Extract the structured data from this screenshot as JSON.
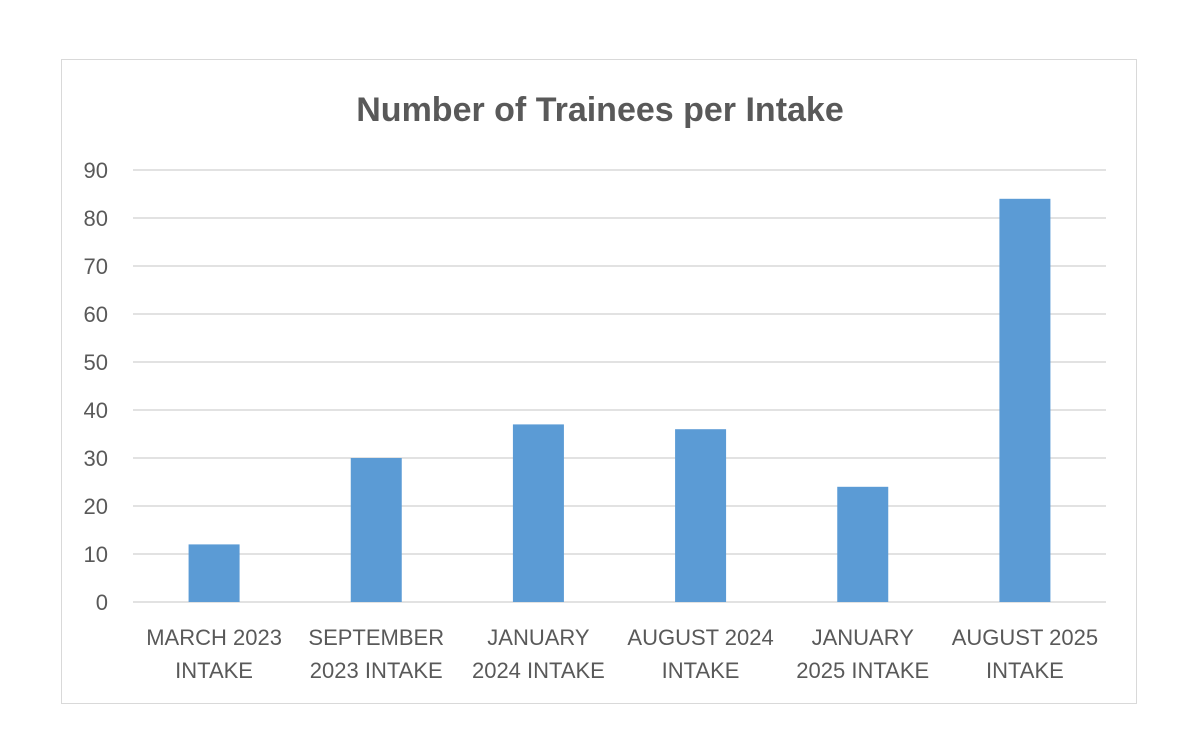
{
  "chart_data": {
    "type": "bar",
    "title": "Number of Trainees per Intake",
    "xlabel": "",
    "ylabel": "",
    "categories": [
      [
        "MARCH 2023",
        "INTAKE"
      ],
      [
        "SEPTEMBER",
        "2023 INTAKE"
      ],
      [
        "JANUARY",
        "2024 INTAKE"
      ],
      [
        "AUGUST 2024",
        "INTAKE"
      ],
      [
        "JANUARY",
        "2025 INTAKE"
      ],
      [
        "AUGUST 2025",
        "INTAKE"
      ]
    ],
    "values": [
      12,
      30,
      37,
      36,
      24,
      84
    ],
    "ylim": [
      0,
      90
    ],
    "yticks": [
      0,
      10,
      20,
      30,
      40,
      50,
      60,
      70,
      80,
      90
    ],
    "grid": true,
    "legend": "none",
    "colors": {
      "bar": "#5b9bd5",
      "grid": "#d9d9d9",
      "text": "#595959"
    }
  }
}
